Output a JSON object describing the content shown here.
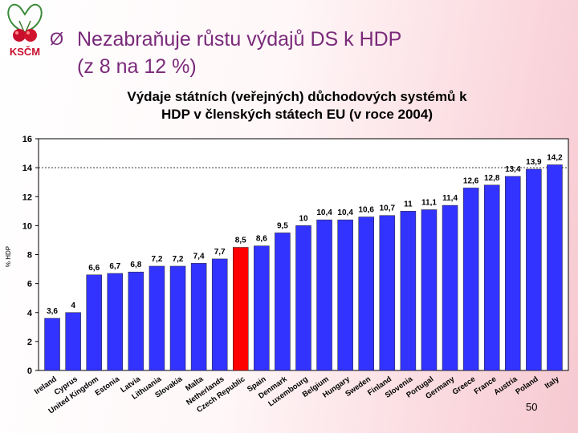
{
  "header": {
    "logo_text": "KSČM",
    "headline_arrow": "Ø",
    "headline_line1": "Nezabraňuje růstu výdajů DS k HDP",
    "headline_line2": "(z 8 na 12 %)"
  },
  "slide_number": "50",
  "colors": {
    "bar": "#3333ff",
    "highlight_bar": "#ff0000",
    "headline": "#7a2a7a",
    "reference_line": "#333333"
  },
  "chart_data": {
    "type": "bar",
    "title_line1": "Výdaje státních (veřejných) důchodových systémů k",
    "title_line2": "HDP v členských státech EU (v roce 2004)",
    "ylabel": "% HDP",
    "xlabel": "",
    "ylim": [
      0,
      16
    ],
    "yticks": [
      "0",
      "2",
      "4",
      "6",
      "8",
      "10",
      "12",
      "14",
      "16"
    ],
    "reference_line": 14,
    "highlight_category": "Czech Republic",
    "categories": [
      "Ireland",
      "Cyprus",
      "United Kingdom",
      "Estonia",
      "Latvia",
      "Lithuania",
      "Slovakia",
      "Malta",
      "Netherlands",
      "Czech Republic",
      "Spain",
      "Denmark",
      "Luxembourg",
      "Belgium",
      "Hungary",
      "Sweden",
      "Finland",
      "Slovenia",
      "Portugal",
      "Germany",
      "Greece",
      "France",
      "Austria",
      "Poland",
      "Italy"
    ],
    "values": [
      3.6,
      4,
      6.6,
      6.7,
      6.8,
      7.2,
      7.2,
      7.4,
      7.7,
      8.5,
      8.6,
      9.5,
      10,
      10.4,
      10.4,
      10.6,
      10.7,
      11,
      11.1,
      11.4,
      12.6,
      12.8,
      13.4,
      13.9,
      14.2
    ],
    "value_labels": [
      "3,6",
      "4",
      "6,6",
      "6,7",
      "6,8",
      "7,2",
      "7,2",
      "7,4",
      "7,7",
      "8,5",
      "8,6",
      "9,5",
      "10",
      "10,4",
      "10,4",
      "10,6",
      "10,7",
      "11",
      "11,1",
      "11,4",
      "12,6",
      "12,8",
      "13,4",
      "13,9",
      "14,2"
    ],
    "grid": false,
    "legend": "none"
  }
}
